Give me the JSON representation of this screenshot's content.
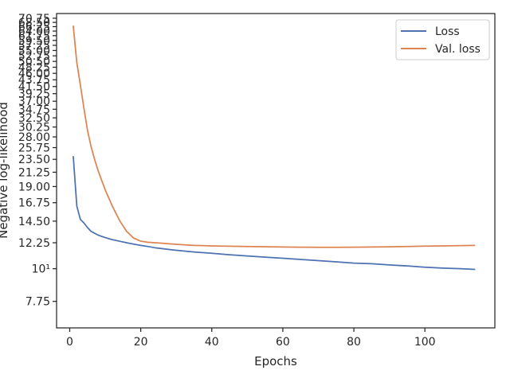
{
  "chart_data": {
    "type": "line",
    "title": "",
    "xlabel": "Epochs",
    "ylabel": "Negative log-likelihood",
    "yscale": "log",
    "xlim": [
      -3.7,
      119.7
    ],
    "ylim": [
      6.3,
      73.4
    ],
    "grid": false,
    "legend_position": "top-right",
    "x_ticks": [
      0,
      20,
      40,
      60,
      80,
      100
    ],
    "x_tick_labels": [
      "0",
      "20",
      "40",
      "60",
      "80",
      "100"
    ],
    "y_ticks": [
      7.75,
      10,
      12.25,
      14.5,
      16.75,
      19.0,
      21.25,
      23.5,
      25.75,
      28.0,
      30.25,
      32.5,
      34.75,
      37.0,
      39.25,
      41.5,
      43.75,
      46.0,
      48.25,
      50.5,
      52.75,
      55.0,
      57.25,
      59.5,
      61.75,
      64.0,
      66.25,
      68.5,
      70.75
    ],
    "y_tick_labels": [
      "7.75",
      "10¹",
      "12.25",
      "14.50",
      "16.75",
      "19.00",
      "21.25",
      "23.50",
      "25.75",
      "28.00",
      "30.25",
      "32.50",
      "34.75",
      "37.00",
      "39.25",
      "41.50",
      "43.75",
      "46.00",
      "48.25",
      "50.50",
      "52.75",
      "55.00",
      "57.25",
      "59.50",
      "61.75",
      "64.00",
      "66.25",
      "68.50",
      "70.75"
    ],
    "series": [
      {
        "name": "Loss",
        "color": "#4c72b0",
        "x": [
          1,
          2,
          3,
          4,
          5,
          6,
          7,
          8,
          10,
          12,
          14,
          16,
          18,
          20,
          22,
          24,
          26,
          28,
          30,
          35,
          40,
          45,
          50,
          55,
          60,
          65,
          70,
          75,
          80,
          85,
          90,
          95,
          100,
          105,
          110,
          114
        ],
        "y": [
          24.0,
          16.3,
          14.7,
          14.3,
          13.8,
          13.4,
          13.2,
          13.0,
          12.75,
          12.55,
          12.4,
          12.25,
          12.12,
          12.0,
          11.9,
          11.78,
          11.7,
          11.62,
          11.55,
          11.4,
          11.28,
          11.15,
          11.05,
          10.95,
          10.85,
          10.75,
          10.65,
          10.55,
          10.45,
          10.4,
          10.3,
          10.22,
          10.12,
          10.05,
          10.0,
          9.95
        ]
      },
      {
        "name": "Val. loss",
        "color": "#dd8452",
        "x": [
          1,
          2,
          3,
          4,
          5,
          6,
          7,
          8,
          10,
          12,
          14,
          16,
          18,
          20,
          22,
          24,
          26,
          28,
          30,
          35,
          40,
          45,
          50,
          55,
          60,
          65,
          70,
          75,
          80,
          85,
          90,
          95,
          100,
          105,
          110,
          114
        ],
        "y": [
          66.5,
          50.0,
          42.0,
          35.0,
          29.5,
          26.0,
          23.5,
          21.5,
          18.5,
          16.3,
          14.6,
          13.4,
          12.7,
          12.4,
          12.3,
          12.25,
          12.2,
          12.15,
          12.1,
          12.0,
          11.95,
          11.92,
          11.9,
          11.88,
          11.85,
          11.83,
          11.82,
          11.82,
          11.83,
          11.85,
          11.87,
          11.9,
          11.93,
          11.95,
          11.98,
          12.0
        ]
      }
    ]
  }
}
